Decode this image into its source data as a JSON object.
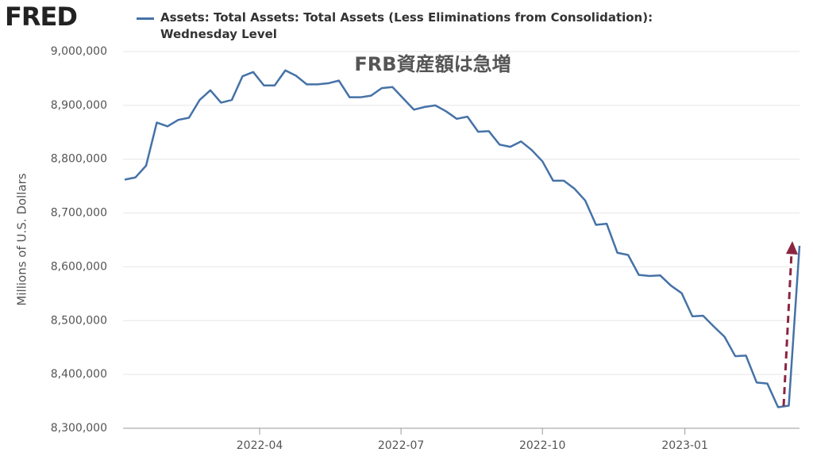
{
  "chart_data": {
    "type": "line",
    "logo": "FRED",
    "annotation": "FRB資産額は急増",
    "ylabel": "Millions of U.S. Dollars",
    "series": [
      {
        "name": "Assets: Total Assets: Total Assets (Less Eliminations from Consolidation): Wednesday Level",
        "color": "#4572a7",
        "values": [
          8762000,
          8766000,
          8788000,
          8868000,
          8861000,
          8873000,
          8877000,
          8910000,
          8928000,
          8905000,
          8910000,
          8954000,
          8962000,
          8937000,
          8937000,
          8965000,
          8955000,
          8939000,
          8939000,
          8941000,
          8946000,
          8915000,
          8915000,
          8918000,
          8932000,
          8934000,
          8913000,
          8892000,
          8897000,
          8900000,
          8889000,
          8875000,
          8879000,
          8851000,
          8852000,
          8827000,
          8823000,
          8833000,
          8817000,
          8796000,
          8760000,
          8760000,
          8745000,
          8723000,
          8678000,
          8680000,
          8626000,
          8622000,
          8585000,
          8583000,
          8584000,
          8565000,
          8551000,
          8508000,
          8509000,
          8489000,
          8470000,
          8434000,
          8435000,
          8385000,
          8383000,
          8339000,
          8342000,
          8639000
        ]
      }
    ],
    "xlim": [
      -0.15,
      63
    ],
    "xticks": [
      {
        "value": 12.6,
        "label": "2022-04"
      },
      {
        "value": 25.8,
        "label": "2022-07"
      },
      {
        "value": 39,
        "label": "2022-10"
      },
      {
        "value": 52.3,
        "label": "2023-01"
      }
    ],
    "ylim": [
      8300000,
      9000000
    ],
    "yticks": [
      {
        "value": 8300000,
        "label": "8,300,000"
      },
      {
        "value": 8400000,
        "label": "8,400,000"
      },
      {
        "value": 8500000,
        "label": "8,500,000"
      },
      {
        "value": 8600000,
        "label": "8,600,000"
      },
      {
        "value": 8700000,
        "label": "8,700,000"
      },
      {
        "value": 8800000,
        "label": "8,800,000"
      },
      {
        "value": 8900000,
        "label": "8,900,000"
      },
      {
        "value": 9000000,
        "label": "9,000,000"
      }
    ],
    "grid": true
  }
}
